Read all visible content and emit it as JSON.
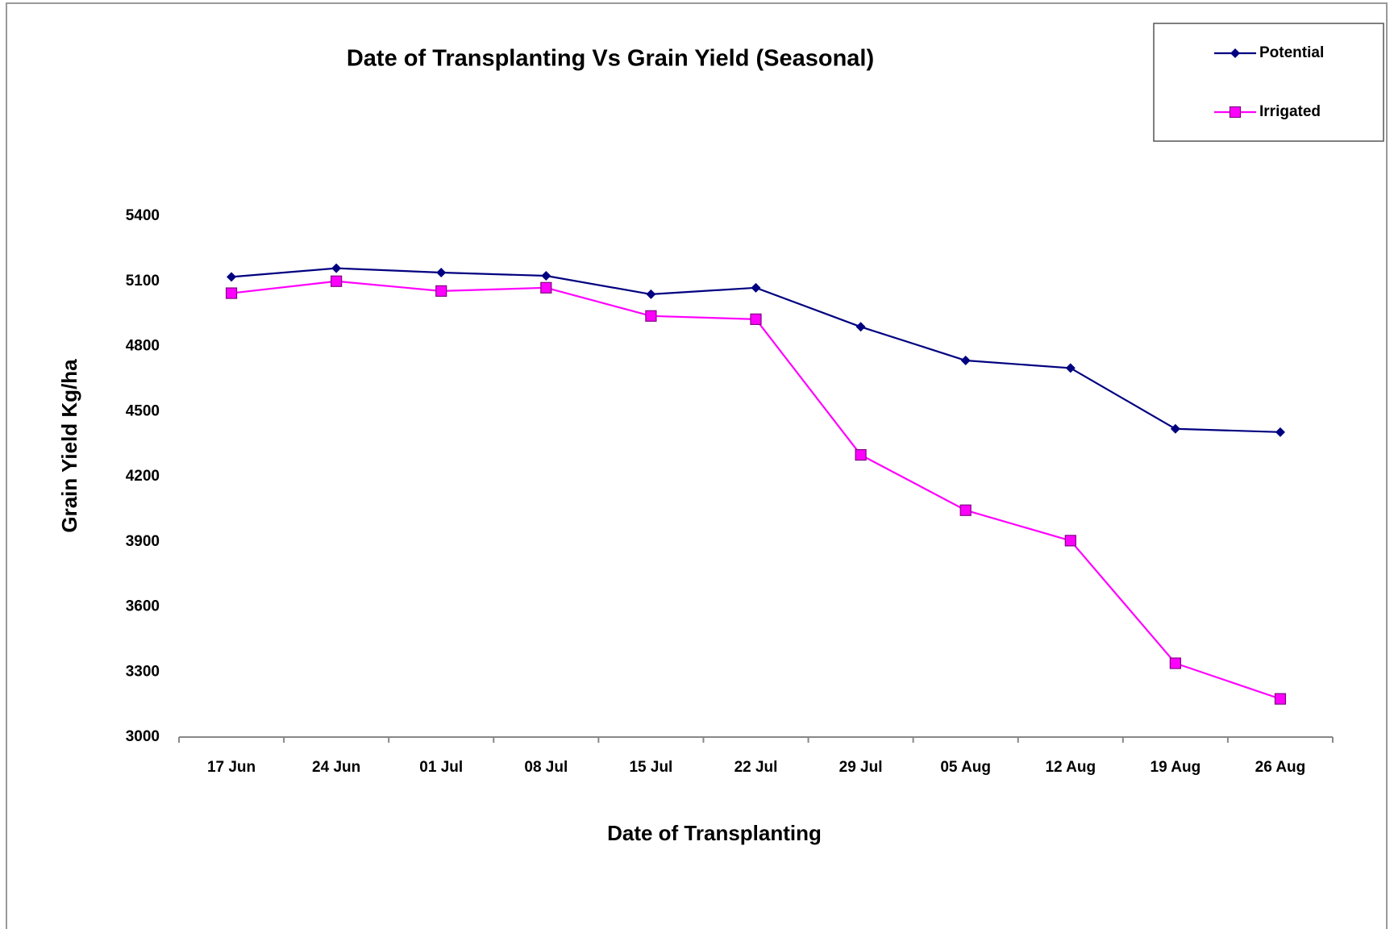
{
  "chart_data": {
    "type": "line",
    "title": "Date of Transplanting Vs Grain Yield (Seasonal)",
    "x_label": "Date of Transplanting",
    "y_label": "Grain Yield Kg/ha",
    "categories": [
      "17 Jun",
      "24 Jun",
      "01 Jul",
      "08 Jul",
      "15 Jul",
      "22 Jul",
      "29 Jul",
      "05 Aug",
      "12 Aug",
      "19 Aug",
      "26 Aug"
    ],
    "series": [
      {
        "name": "Potential",
        "color": "#000080",
        "marker": "diamond",
        "values": [
          5120,
          5160,
          5140,
          5125,
          5040,
          5070,
          4890,
          4735,
          4700,
          4420,
          4405
        ]
      },
      {
        "name": "Irrigated",
        "color": "#ff00ff",
        "marker": "square",
        "values": [
          5045,
          5100,
          5055,
          5070,
          4940,
          4925,
          4300,
          4045,
          3905,
          3340,
          3176
        ]
      }
    ],
    "ylim": [
      3000,
      5400
    ],
    "yticks": [
      3000,
      3300,
      3600,
      3900,
      4200,
      4500,
      4800,
      5100,
      5400
    ],
    "grid": false,
    "legend": "top-right"
  }
}
